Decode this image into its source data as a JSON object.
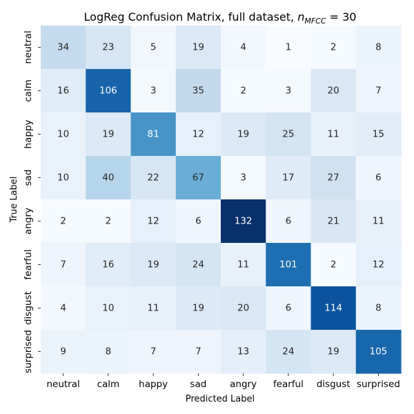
{
  "chart_data": {
    "type": "heatmap",
    "title_main": "LogReg Confusion Matrix, full dataset, ",
    "title_math_var": "n",
    "title_math_sub": "MFCC",
    "title_math_eq": " = 30",
    "xlabel": "Predicted Label",
    "ylabel": "True Label",
    "x_categories": [
      "neutral",
      "calm",
      "happy",
      "sad",
      "angry",
      "fearful",
      "disgust",
      "surprised"
    ],
    "y_categories": [
      "neutral",
      "calm",
      "happy",
      "sad",
      "angry",
      "fearful",
      "disgust",
      "surprised"
    ],
    "values": [
      [
        34,
        23,
        5,
        19,
        4,
        1,
        2,
        8
      ],
      [
        16,
        106,
        3,
        35,
        2,
        3,
        20,
        7
      ],
      [
        10,
        19,
        81,
        12,
        19,
        25,
        11,
        15
      ],
      [
        10,
        40,
        22,
        67,
        3,
        17,
        27,
        6
      ],
      [
        2,
        2,
        12,
        6,
        132,
        6,
        21,
        11
      ],
      [
        7,
        16,
        19,
        24,
        11,
        101,
        2,
        12
      ],
      [
        4,
        10,
        11,
        19,
        20,
        6,
        114,
        8
      ],
      [
        9,
        8,
        7,
        7,
        13,
        24,
        19,
        105
      ]
    ],
    "colormap": "Blues",
    "value_range": [
      1,
      132
    ],
    "colorbar": false,
    "grid": false,
    "text_color_light": "#ffffff",
    "text_color_dark": "#262626"
  }
}
